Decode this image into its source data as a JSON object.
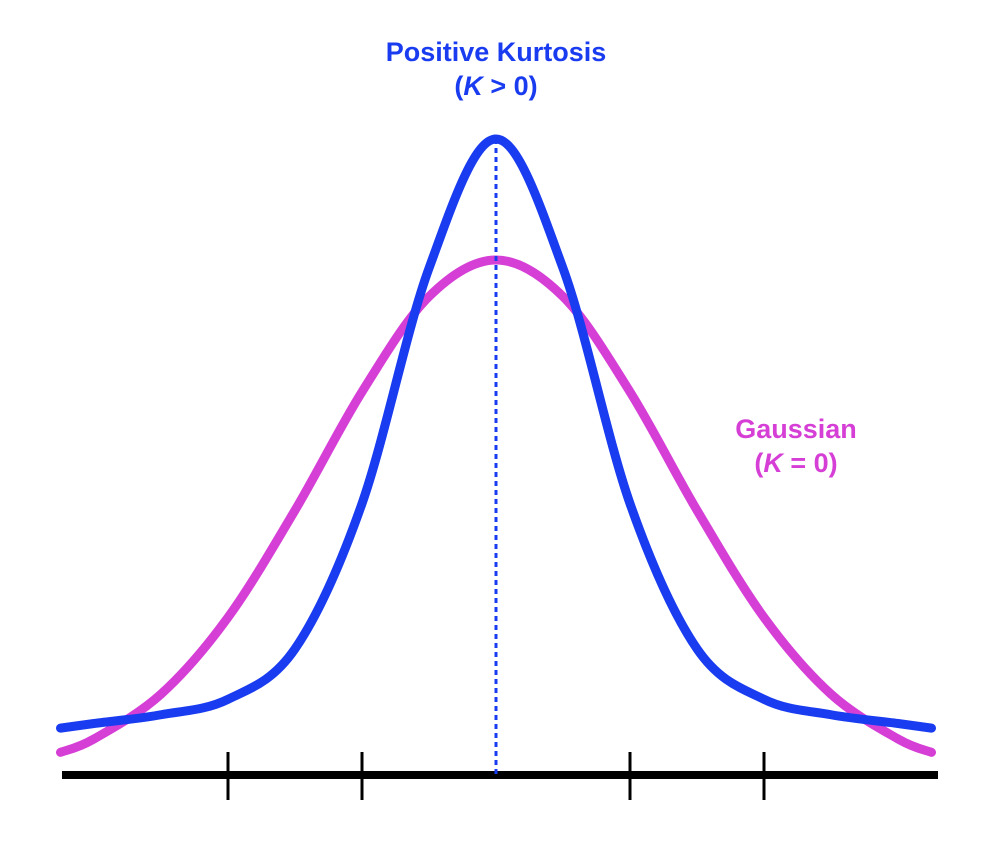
{
  "chart_data": {
    "type": "line",
    "title": "",
    "xlabel": "",
    "ylabel": "",
    "xlim": [
      -3.25,
      3.25
    ],
    "ylim": [
      0,
      1.3
    ],
    "x_ticks": [
      -2,
      -1,
      1,
      2
    ],
    "grid": false,
    "x": [
      -3.25,
      -3,
      -2.5,
      -2,
      -1.5,
      -1,
      -0.5,
      0,
      0.5,
      1,
      1.5,
      2,
      2.5,
      3,
      3.25
    ],
    "series": [
      {
        "name": "Gaussian",
        "label_line1": "Gaussian",
        "label_k": "K",
        "label_rest": " = 0)",
        "color": "#d63fd6",
        "values": [
          0.044,
          0.07,
          0.157,
          0.306,
          0.514,
          0.744,
          0.929,
          1.0,
          0.929,
          0.744,
          0.514,
          0.306,
          0.157,
          0.07,
          0.044
        ]
      },
      {
        "name": "Positive Kurtosis",
        "label_line1": "Positive Kurtosis",
        "label_k": "K",
        "label_rest": " > 0)",
        "color": "#1a3cf0",
        "values": [
          0.091,
          0.1,
          0.117,
          0.147,
          0.245,
          0.527,
          0.984,
          1.235,
          0.984,
          0.527,
          0.245,
          0.147,
          0.117,
          0.1,
          0.091
        ]
      }
    ],
    "annotations": [
      {
        "type": "vline",
        "x": 0,
        "style": "dotted",
        "color": "#1a3cf0"
      }
    ]
  }
}
